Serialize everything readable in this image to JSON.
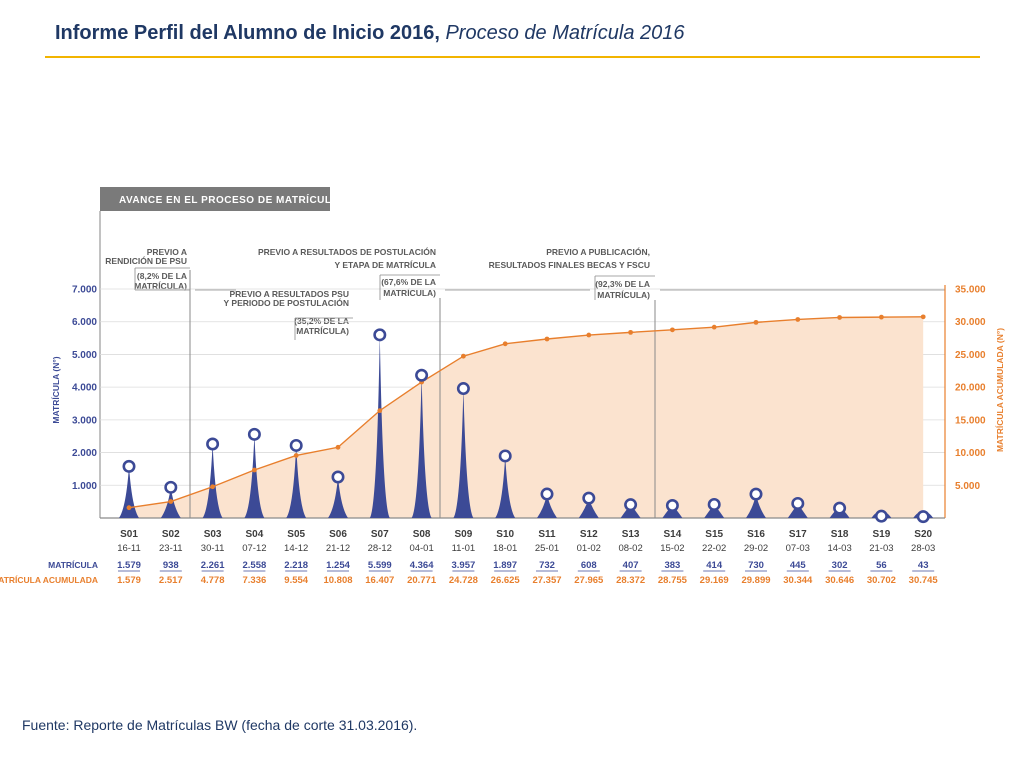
{
  "header": {
    "title_main": "Informe Perfil del Alumno de Inicio 2016,",
    "title_sub": "Proceso de Matrícula 2016"
  },
  "footer": {
    "source": "Fuente: Reporte de Matrículas BW (fecha de corte 31.03.2016)."
  },
  "colors": {
    "accent": "#f2b400",
    "matricula": "#3c4a96",
    "acumulada": "#e87f2d",
    "area_fill": "#fbe3cf",
    "panel_header": "#7a7a7a"
  },
  "chart_data": {
    "type": "bar-line",
    "title": "AVANCE EN EL PROCESO DE MATRÍCULA",
    "ylabel_left": "MATRÍCULA (N°)",
    "ylabel_right": "MATRÍCULA ACUMULADA (N°)",
    "ylim_left": [
      0,
      7000
    ],
    "ylim_right": [
      0,
      35000
    ],
    "yticks_left": [
      "1.000",
      "2.000",
      "3.000",
      "4.000",
      "5.000",
      "6.000",
      "7.000"
    ],
    "yticks_right": [
      "5.000",
      "10.000",
      "15.000",
      "20.000",
      "25.000",
      "30.000",
      "35.000"
    ],
    "weeks": [
      "S01",
      "S02",
      "S03",
      "S04",
      "S05",
      "S06",
      "S07",
      "S08",
      "S09",
      "S10",
      "S11",
      "S12",
      "S13",
      "S14",
      "S15",
      "S16",
      "S17",
      "S18",
      "S19",
      "S20"
    ],
    "dates": [
      "16-11",
      "23-11",
      "30-11",
      "07-12",
      "14-12",
      "21-12",
      "28-12",
      "04-01",
      "11-01",
      "18-01",
      "25-01",
      "01-02",
      "08-02",
      "15-02",
      "22-02",
      "29-02",
      "07-03",
      "14-03",
      "21-03",
      "28-03"
    ],
    "series": [
      {
        "name": "MATRÍCULA",
        "values": [
          1579,
          938,
          2261,
          2558,
          2218,
          1254,
          5599,
          4364,
          3957,
          1897,
          732,
          608,
          407,
          383,
          414,
          730,
          445,
          302,
          56,
          43
        ],
        "labels": [
          "1.579",
          "938",
          "2.261",
          "2.558",
          "2.218",
          "1.254",
          "5.599",
          "4.364",
          "3.957",
          "1.897",
          "732",
          "608",
          "407",
          "383",
          "414",
          "730",
          "445",
          "302",
          "56",
          "43"
        ]
      },
      {
        "name": "MATRÍCULA ACUMULADA",
        "values": [
          1579,
          2517,
          4778,
          7336,
          9554,
          10808,
          16407,
          20771,
          24728,
          26625,
          27357,
          27965,
          28372,
          28755,
          29169,
          29899,
          30344,
          30646,
          30702,
          30745
        ],
        "labels": [
          "1.579",
          "2.517",
          "4.778",
          "7.336",
          "9.554",
          "10.808",
          "16.407",
          "20.771",
          "24.728",
          "26.625",
          "27.357",
          "27.965",
          "28.372",
          "28.755",
          "29.169",
          "29.899",
          "30.344",
          "30.646",
          "30.702",
          "30.745"
        ]
      }
    ],
    "annotations": [
      {
        "lines": [
          "PREVIO A",
          "RENDICIÓN DE PSU"
        ],
        "pct": [
          "(8,2% DE LA",
          "MATRÍCULA)"
        ]
      },
      {
        "lines": [
          "PREVIO A RESULTADOS PSU",
          "Y PERIODO DE POSTULACIÓN"
        ],
        "pct": [
          "(35,2% DE LA",
          "MATRÍCULA)"
        ]
      },
      {
        "lines": [
          "PREVIO A RESULTADOS DE POSTULACIÓN",
          "Y ETAPA DE MATRÍCULA"
        ],
        "pct": [
          "(67,6% DE LA",
          "MATRÍCULA)"
        ]
      },
      {
        "lines": [
          "PREVIO A PUBLICACIÓN,",
          "RESULTADOS FINALES BECAS Y FSCU"
        ],
        "pct": [
          "(92,3% DE LA",
          "MATRÍCULA)"
        ]
      }
    ]
  }
}
